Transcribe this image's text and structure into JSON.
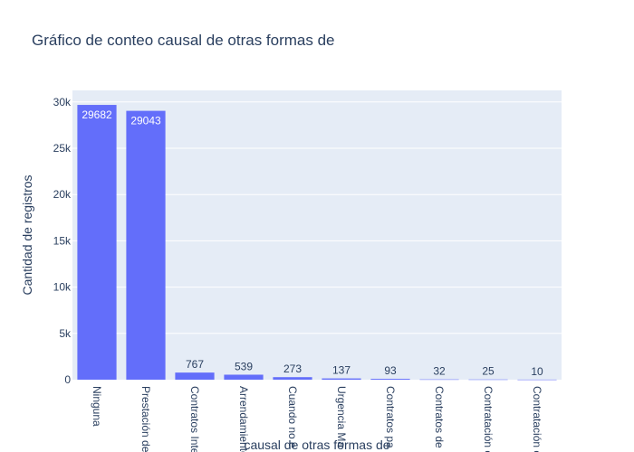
{
  "chart_data": {
    "type": "bar",
    "title": "Gráfico de conteo causal de otras formas de",
    "xlabel": "causal de otras formas de",
    "ylabel": "Cantidad de registros",
    "categories": [
      "Ninguna",
      "Prestación de",
      "Contratos Inte",
      "Arrendamiento",
      "Cuando no e",
      "Urgencia Ma",
      "Contratos pa",
      "Contratos de",
      "Contratación c",
      "Contratación c"
    ],
    "values": [
      29682,
      29043,
      767,
      539,
      273,
      137,
      93,
      32,
      25,
      10
    ],
    "data_labels": [
      "29682",
      "29043",
      "767",
      "539",
      "273",
      "137",
      "93",
      "32",
      "25",
      "10"
    ],
    "ylim": [
      0,
      31250
    ],
    "yticks": [
      0,
      5000,
      10000,
      15000,
      20000,
      25000,
      30000
    ],
    "ytick_labels": [
      "0",
      "5k",
      "10k",
      "15k",
      "20k",
      "25k",
      "30k"
    ],
    "grid": true,
    "colors": {
      "bar": "#636efa",
      "plot_bg": "#e5ecf6",
      "text": "#2a3f5f",
      "grid": "#ffffff"
    }
  }
}
